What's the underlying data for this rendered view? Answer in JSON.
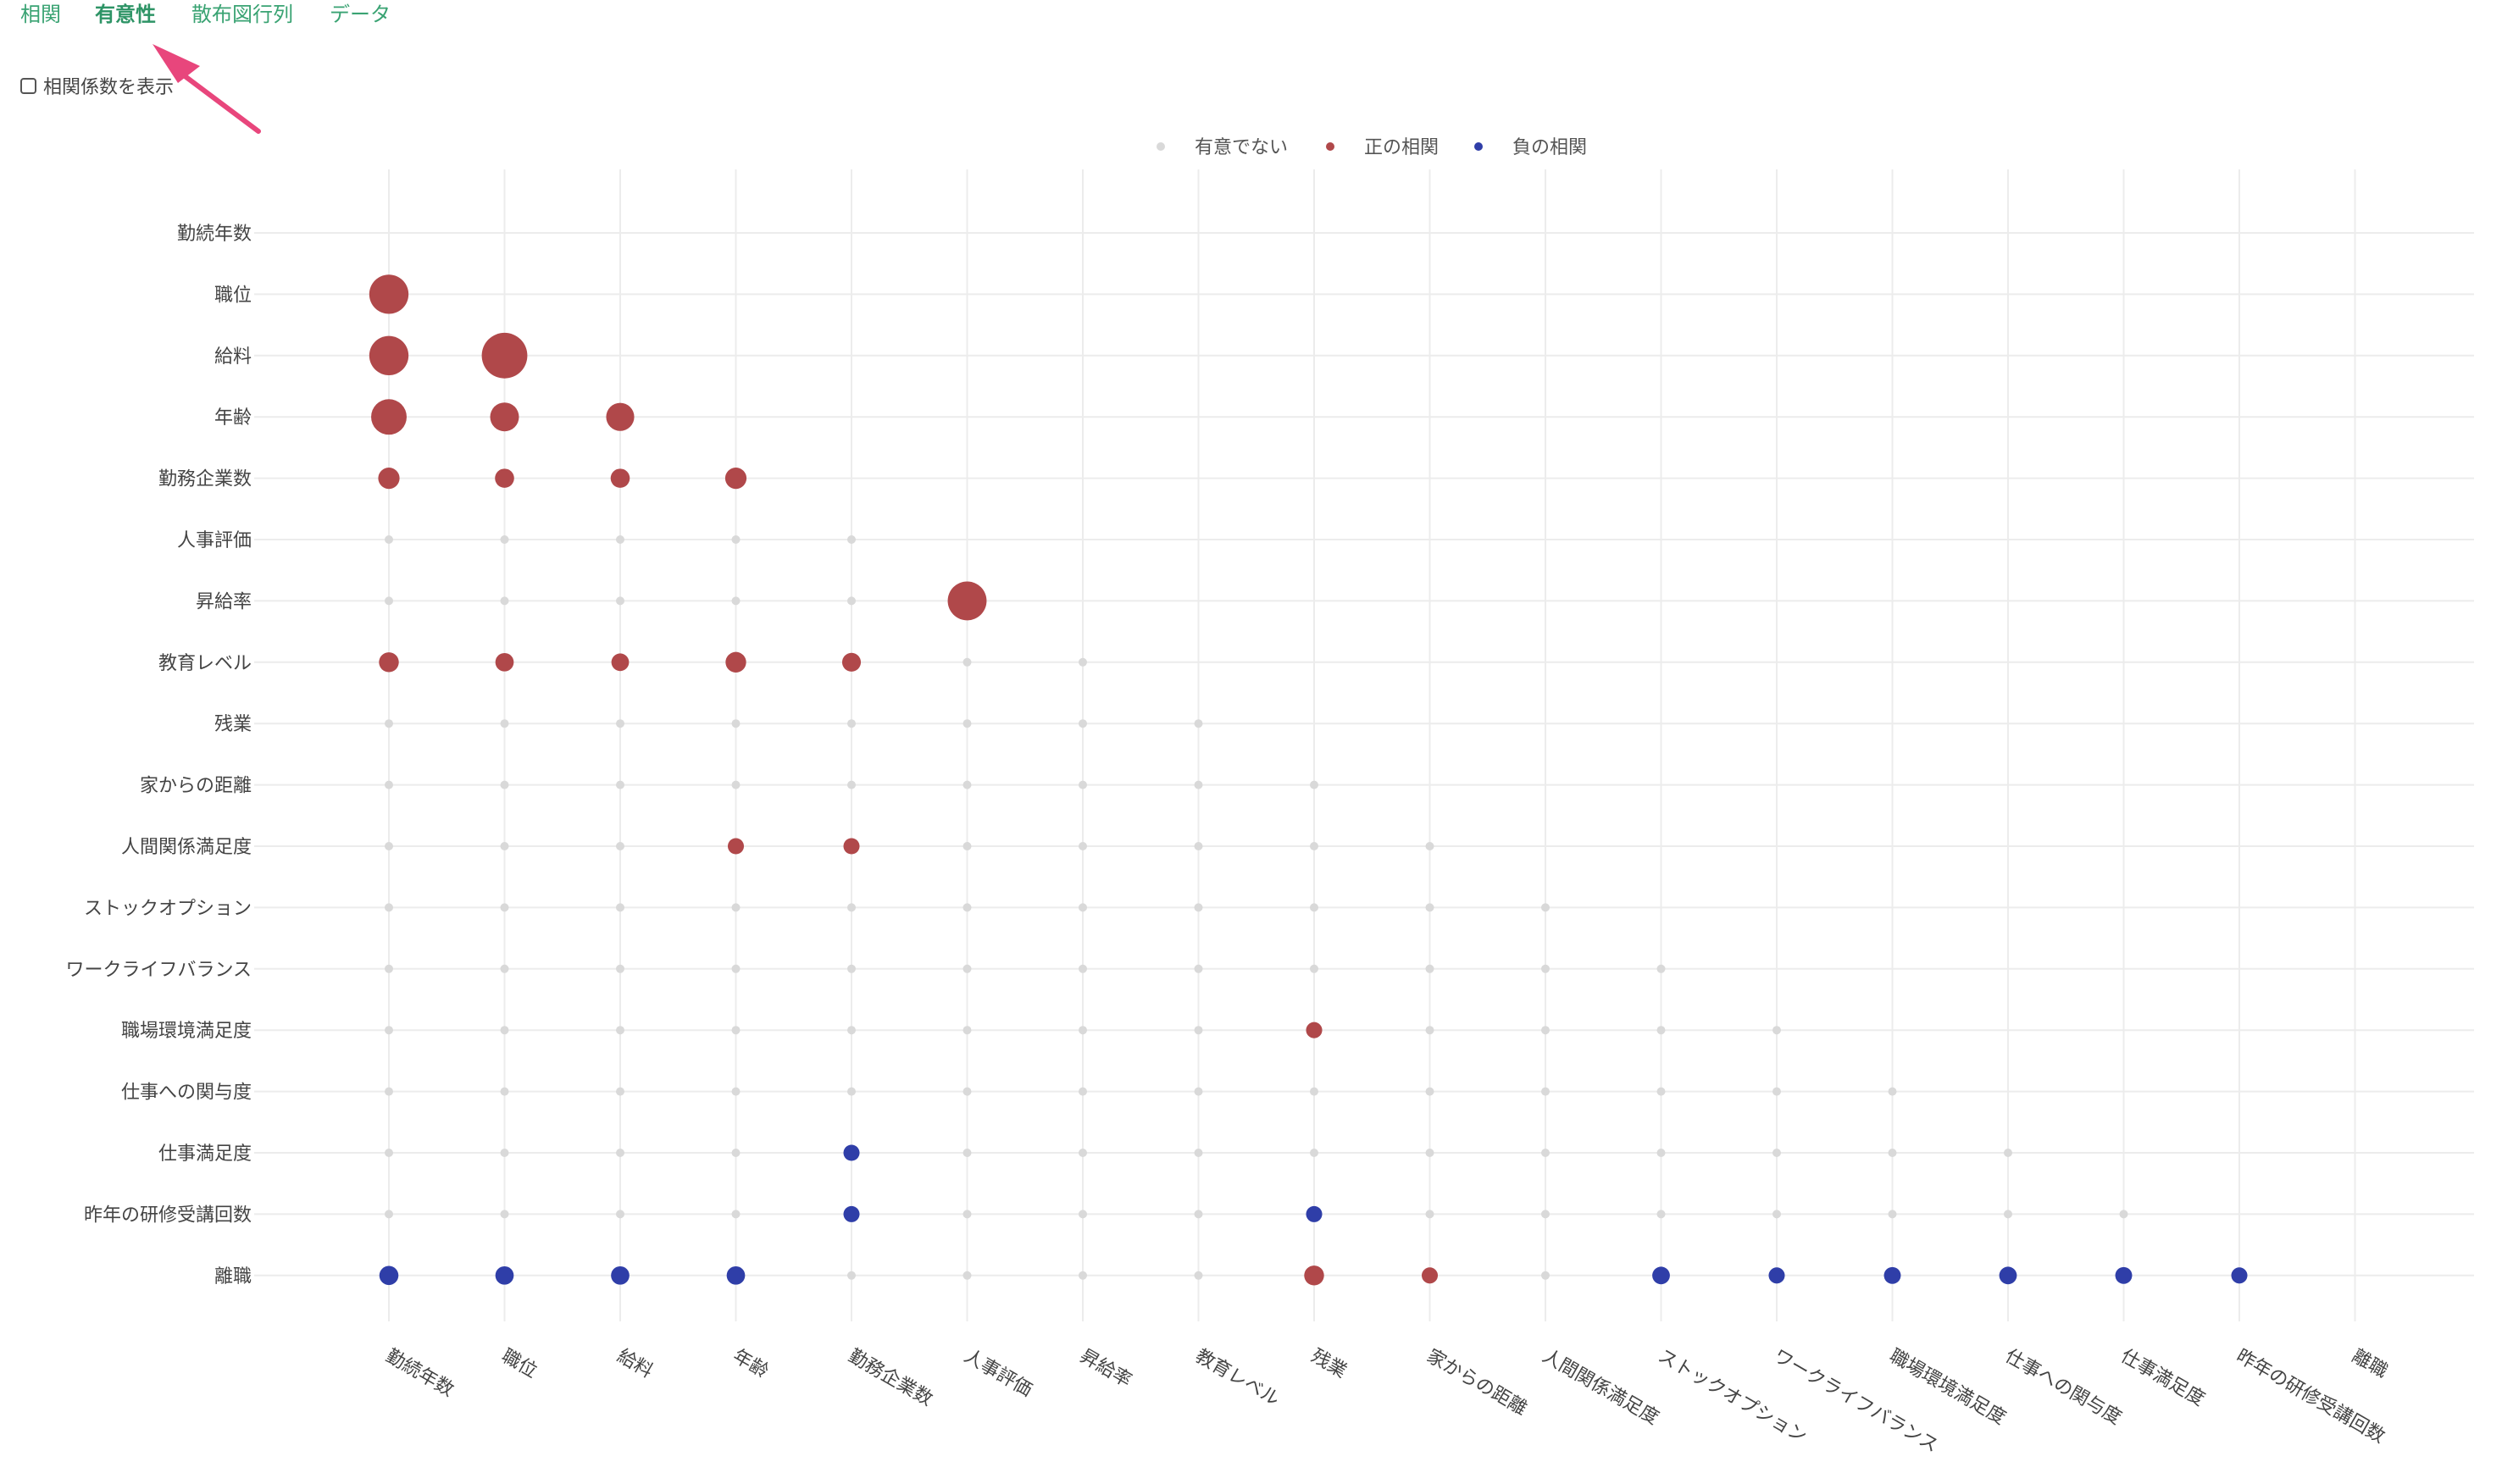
{
  "tabs": [
    {
      "label": "相関",
      "active": false
    },
    {
      "label": "有意性",
      "active": true
    },
    {
      "label": "散布図行列",
      "active": false
    },
    {
      "label": "データ",
      "active": false
    }
  ],
  "toggle": {
    "label": "相関係数を表示",
    "checked": false
  },
  "colors": {
    "tab": "#3aa373",
    "arrow": "#e8467c",
    "positive": "#b0484a",
    "negative": "#2f3ea8",
    "not_significant": "#d9d9d9",
    "grid": "#ececec"
  },
  "chart_data": {
    "type": "scatter",
    "description_type": "correlation significance bubble matrix (lower triangle)",
    "legend": [
      "有意でない",
      "正の相関",
      "負の相関"
    ],
    "legend_placement": "top-center",
    "grid": true,
    "x_labels": [
      "勤続年数",
      "職位",
      "給料",
      "年齢",
      "勤務企業数",
      "人事評価",
      "昇給率",
      "教育レベル",
      "残業",
      "家からの距離",
      "人間関係満足度",
      "ストックオプション",
      "ワークライフバランス",
      "職場環境満足度",
      "仕事への関与度",
      "仕事満足度",
      "昨年の研修受講回数",
      "離職"
    ],
    "y_labels": [
      "勤続年数",
      "職位",
      "給料",
      "年齢",
      "勤務企業数",
      "人事評価",
      "昇給率",
      "教育レベル",
      "残業",
      "家からの距離",
      "人間関係満足度",
      "ストックオプション",
      "ワークライフバランス",
      "職場環境満足度",
      "仕事への関与度",
      "仕事満足度",
      "昨年の研修受講回数",
      "離職"
    ],
    "cells": [
      [],
      [
        {
          "s": "pos",
          "m": 0.78
        }
      ],
      [
        {
          "s": "pos",
          "m": 0.78
        },
        {
          "s": "pos",
          "m": 0.95
        }
      ],
      [
        {
          "s": "pos",
          "m": 0.68
        },
        {
          "s": "pos",
          "m": 0.5
        },
        {
          "s": "pos",
          "m": 0.48
        }
      ],
      [
        {
          "s": "pos",
          "m": 0.3
        },
        {
          "s": "pos",
          "m": 0.24
        },
        {
          "s": "pos",
          "m": 0.24
        },
        {
          "s": "pos",
          "m": 0.3
        }
      ],
      [
        {
          "s": "ns"
        },
        {
          "s": "ns"
        },
        {
          "s": "ns"
        },
        {
          "s": "ns"
        },
        {
          "s": "ns"
        }
      ],
      [
        {
          "s": "ns"
        },
        {
          "s": "ns"
        },
        {
          "s": "ns"
        },
        {
          "s": "ns"
        },
        {
          "s": "ns"
        },
        {
          "s": "pos",
          "m": 0.77
        }
      ],
      [
        {
          "s": "pos",
          "m": 0.26
        },
        {
          "s": "pos",
          "m": 0.22
        },
        {
          "s": "pos",
          "m": 0.2
        },
        {
          "s": "pos",
          "m": 0.28
        },
        {
          "s": "pos",
          "m": 0.23
        },
        {
          "s": "ns"
        },
        {
          "s": "ns"
        }
      ],
      [
        {
          "s": "ns"
        },
        {
          "s": "ns"
        },
        {
          "s": "ns"
        },
        {
          "s": "ns"
        },
        {
          "s": "ns"
        },
        {
          "s": "ns"
        },
        {
          "s": "ns"
        },
        {
          "s": "ns"
        }
      ],
      [
        {
          "s": "ns"
        },
        {
          "s": "ns"
        },
        {
          "s": "ns"
        },
        {
          "s": "ns"
        },
        {
          "s": "ns"
        },
        {
          "s": "ns"
        },
        {
          "s": "ns"
        },
        {
          "s": "ns"
        },
        {
          "s": "ns"
        }
      ],
      [
        {
          "s": "ns"
        },
        {
          "s": "ns"
        },
        {
          "s": "ns"
        },
        {
          "s": "pos",
          "m": 0.16
        },
        {
          "s": "pos",
          "m": 0.16
        },
        {
          "s": "ns"
        },
        {
          "s": "ns"
        },
        {
          "s": "ns"
        },
        {
          "s": "ns"
        },
        {
          "s": "ns"
        }
      ],
      [
        {
          "s": "ns"
        },
        {
          "s": "ns"
        },
        {
          "s": "ns"
        },
        {
          "s": "ns"
        },
        {
          "s": "ns"
        },
        {
          "s": "ns"
        },
        {
          "s": "ns"
        },
        {
          "s": "ns"
        },
        {
          "s": "ns"
        },
        {
          "s": "ns"
        },
        {
          "s": "ns"
        }
      ],
      [
        {
          "s": "ns"
        },
        {
          "s": "ns"
        },
        {
          "s": "ns"
        },
        {
          "s": "ns"
        },
        {
          "s": "ns"
        },
        {
          "s": "ns"
        },
        {
          "s": "ns"
        },
        {
          "s": "ns"
        },
        {
          "s": "ns"
        },
        {
          "s": "ns"
        },
        {
          "s": "ns"
        },
        {
          "s": "ns"
        }
      ],
      [
        {
          "s": "ns"
        },
        {
          "s": "ns"
        },
        {
          "s": "ns"
        },
        {
          "s": "ns"
        },
        {
          "s": "ns"
        },
        {
          "s": "ns"
        },
        {
          "s": "ns"
        },
        {
          "s": "ns"
        },
        {
          "s": "pos",
          "m": 0.16
        },
        {
          "s": "ns"
        },
        {
          "s": "ns"
        },
        {
          "s": "ns"
        },
        {
          "s": "ns"
        }
      ],
      [
        {
          "s": "ns"
        },
        {
          "s": "ns"
        },
        {
          "s": "ns"
        },
        {
          "s": "ns"
        },
        {
          "s": "ns"
        },
        {
          "s": "ns"
        },
        {
          "s": "ns"
        },
        {
          "s": "ns"
        },
        {
          "s": "ns"
        },
        {
          "s": "ns"
        },
        {
          "s": "ns"
        },
        {
          "s": "ns"
        },
        {
          "s": "ns"
        },
        {
          "s": "ns"
        }
      ],
      [
        {
          "s": "ns"
        },
        {
          "s": "ns"
        },
        {
          "s": "ns"
        },
        {
          "s": "ns"
        },
        {
          "s": "neg",
          "m": 0.16
        },
        {
          "s": "ns"
        },
        {
          "s": "ns"
        },
        {
          "s": "ns"
        },
        {
          "s": "ns"
        },
        {
          "s": "ns"
        },
        {
          "s": "ns"
        },
        {
          "s": "ns"
        },
        {
          "s": "ns"
        },
        {
          "s": "ns"
        },
        {
          "s": "ns"
        }
      ],
      [
        {
          "s": "ns"
        },
        {
          "s": "ns"
        },
        {
          "s": "ns"
        },
        {
          "s": "ns"
        },
        {
          "s": "neg",
          "m": 0.16
        },
        {
          "s": "ns"
        },
        {
          "s": "ns"
        },
        {
          "s": "ns"
        },
        {
          "s": "neg",
          "m": 0.16
        },
        {
          "s": "ns"
        },
        {
          "s": "ns"
        },
        {
          "s": "ns"
        },
        {
          "s": "ns"
        },
        {
          "s": "ns"
        },
        {
          "s": "ns"
        },
        {
          "s": "ns"
        }
      ],
      [
        {
          "s": "neg",
          "m": 0.24
        },
        {
          "s": "neg",
          "m": 0.22
        },
        {
          "s": "neg",
          "m": 0.22
        },
        {
          "s": "neg",
          "m": 0.22
        },
        {
          "s": "ns"
        },
        {
          "s": "ns"
        },
        {
          "s": "ns"
        },
        {
          "s": "ns"
        },
        {
          "s": "pos",
          "m": 0.26
        },
        {
          "s": "pos",
          "m": 0.16
        },
        {
          "s": "ns"
        },
        {
          "s": "neg",
          "m": 0.2
        },
        {
          "s": "neg",
          "m": 0.16
        },
        {
          "s": "neg",
          "m": 0.18
        },
        {
          "s": "neg",
          "m": 0.2
        },
        {
          "s": "neg",
          "m": 0.18
        },
        {
          "s": "neg",
          "m": 0.16
        }
      ]
    ]
  }
}
